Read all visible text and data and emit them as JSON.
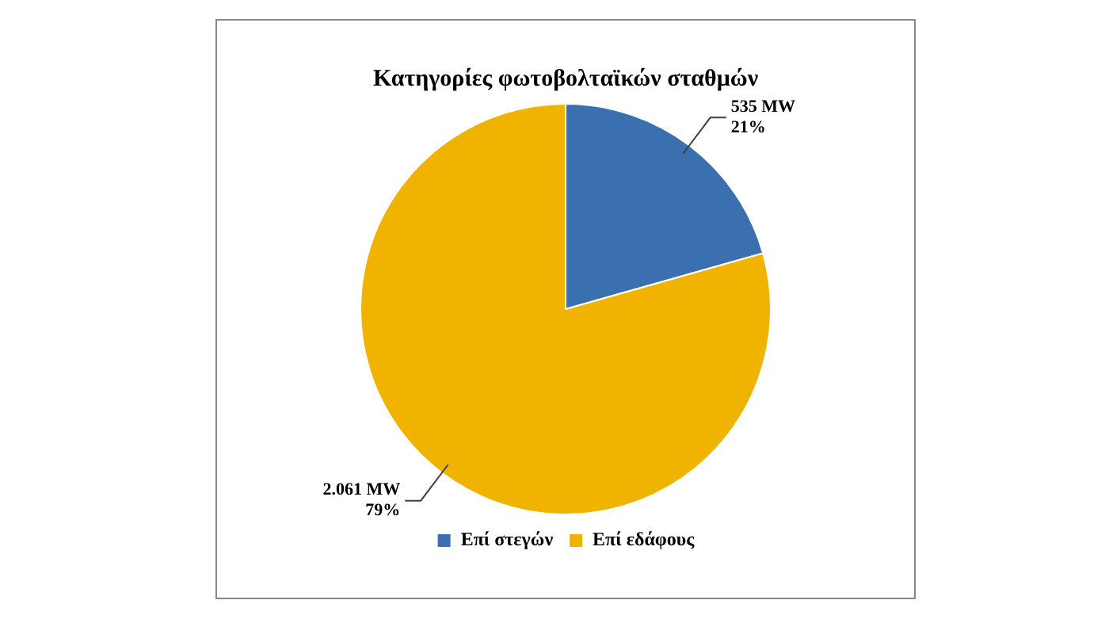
{
  "chart_data": {
    "type": "pie",
    "title": "Κατηγορίες φωτοβολταϊκών σταθμών",
    "categories": [
      "Επί στεγών",
      "Επί εδάφους"
    ],
    "values": [
      535,
      2061
    ],
    "colors": [
      "#3a6fb0",
      "#f0b400"
    ],
    "value_labels": [
      "535 MW\n21%",
      "2.061 MW\n79%"
    ],
    "legend": "bottom"
  }
}
